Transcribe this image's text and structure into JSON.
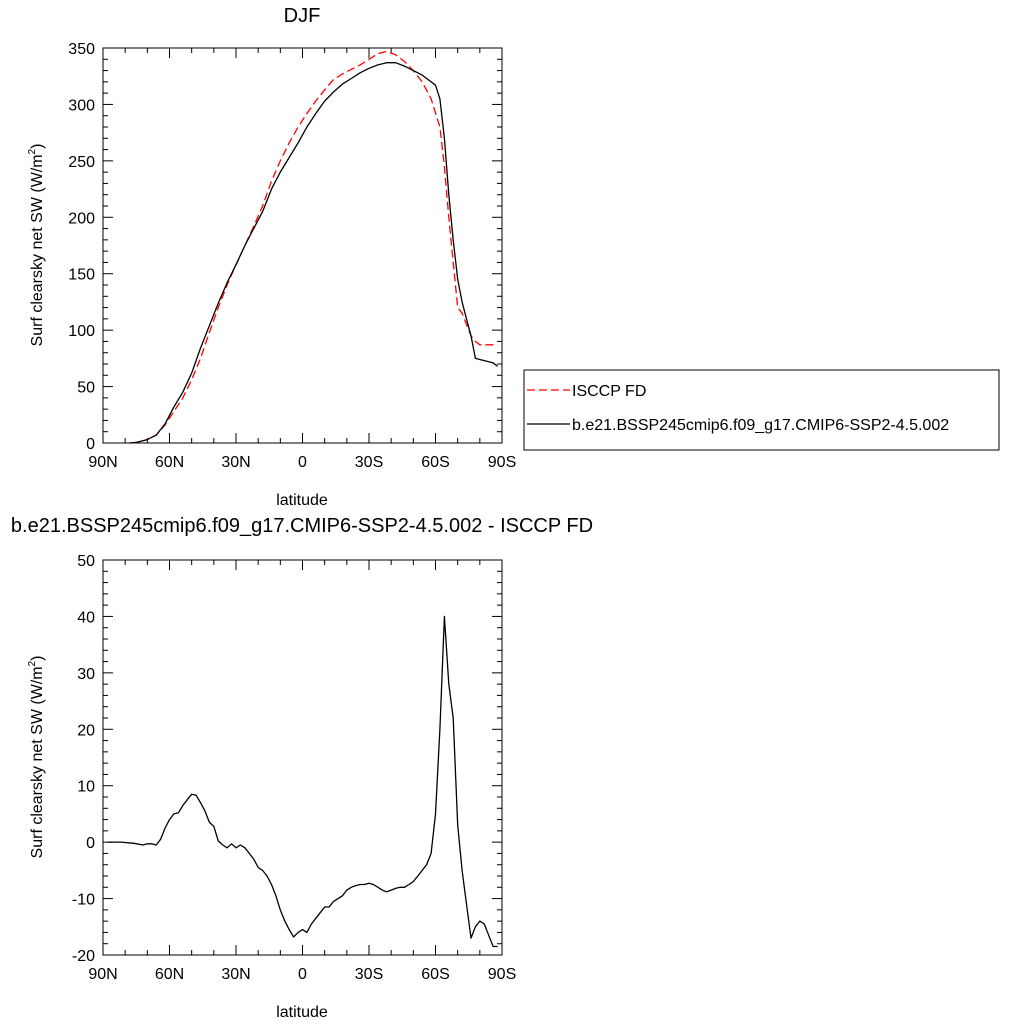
{
  "chart_data": [
    {
      "type": "line",
      "title": "DJF",
      "xlabel": "latitude",
      "ylabel": "Surf clearsky net SW (W/m",
      "ylabel_sup": "2",
      "ylabel_tail": ")",
      "xlim": [
        90,
        -90
      ],
      "ylim": [
        0,
        350
      ],
      "xticks": [
        90,
        60,
        30,
        0,
        -30,
        -60,
        -90
      ],
      "xtick_labels": [
        "90N",
        "60N",
        "30N",
        "0",
        "30S",
        "60S",
        "90S"
      ],
      "yticks": [
        0,
        50,
        100,
        150,
        200,
        250,
        300,
        350
      ],
      "ytick_labels": [
        "0",
        "50",
        "100",
        "150",
        "200",
        "250",
        "300",
        "350"
      ],
      "grid": false,
      "legend": "right",
      "series": [
        {
          "name": "ISCCP FD",
          "color": "#ff0000",
          "dash": true,
          "x": [
            78,
            75,
            70,
            66,
            62,
            58,
            54,
            50,
            46,
            42,
            38,
            34,
            30,
            26,
            22,
            18,
            14,
            10,
            6,
            2,
            -2,
            -6,
            -10,
            -14,
            -18,
            -22,
            -26,
            -30,
            -34,
            -38,
            -42,
            -46,
            -50,
            -54,
            -58,
            -62,
            -64,
            -66,
            -68,
            -70,
            -72,
            -74,
            -76,
            -78,
            -80,
            -82,
            -84,
            -86,
            -88
          ],
          "y": [
            0,
            0.5,
            3,
            7,
            16,
            28,
            40,
            56,
            75,
            98,
            120,
            140,
            158,
            175,
            192,
            210,
            232,
            250,
            266,
            280,
            292,
            303,
            313,
            322,
            327,
            331,
            335,
            340,
            345,
            347,
            344,
            338,
            330,
            320,
            305,
            280,
            245,
            200,
            160,
            120,
            115,
            105,
            95,
            90,
            87,
            87,
            87,
            87,
            87
          ]
        },
        {
          "name": "b.e21.BSSP245cmip6.f09_g17.CMIP6-SSP2-4.5.002",
          "color": "#000000",
          "dash": false,
          "x": [
            78,
            75,
            70,
            66,
            62,
            58,
            54,
            50,
            46,
            42,
            38,
            34,
            30,
            26,
            22,
            18,
            14,
            10,
            6,
            2,
            -2,
            -6,
            -10,
            -14,
            -18,
            -22,
            -26,
            -30,
            -34,
            -38,
            -42,
            -46,
            -50,
            -54,
            -58,
            -60,
            -62,
            -64,
            -66,
            -68,
            -70,
            -72,
            -74,
            -76,
            -78,
            -80,
            -82,
            -84,
            -86,
            -88
          ],
          "y": [
            0,
            0.5,
            3,
            7,
            17,
            32,
            45,
            62,
            84,
            104,
            124,
            142,
            158,
            175,
            190,
            205,
            225,
            240,
            253,
            266,
            280,
            292,
            303,
            311,
            318,
            323,
            328,
            332,
            335,
            337,
            337,
            334,
            330,
            326,
            320,
            317,
            305,
            270,
            220,
            180,
            145,
            125,
            110,
            95,
            75,
            74,
            73,
            72,
            71,
            68
          ]
        }
      ]
    },
    {
      "type": "line",
      "title": "b.e21.BSSP245cmip6.f09_g17.CMIP6-SSP2-4.5.002 - ISCCP FD",
      "xlabel": "latitude",
      "ylabel": "Surf clearsky net SW (W/m",
      "ylabel_sup": "2",
      "ylabel_tail": ")",
      "xlim": [
        90,
        -90
      ],
      "ylim": [
        -20,
        50
      ],
      "xticks": [
        90,
        60,
        30,
        0,
        -30,
        -60,
        -90
      ],
      "xtick_labels": [
        "90N",
        "60N",
        "30N",
        "0",
        "30S",
        "60S",
        "90S"
      ],
      "yticks": [
        -20,
        -10,
        0,
        10,
        20,
        30,
        40,
        50
      ],
      "ytick_labels": [
        "-20",
        "-10",
        "0",
        "10",
        "20",
        "30",
        "40",
        "50"
      ],
      "grid": false,
      "series": [
        {
          "color": "#000000",
          "dash": false,
          "x": [
            88,
            82,
            76,
            72,
            70,
            68,
            66,
            64,
            62,
            60,
            58,
            56,
            54,
            52,
            50,
            48,
            46,
            44,
            42,
            40,
            38,
            36,
            34,
            32,
            30,
            28,
            26,
            24,
            22,
            20,
            18,
            16,
            14,
            12,
            10,
            8,
            6,
            4,
            2,
            0,
            -2,
            -4,
            -6,
            -8,
            -10,
            -12,
            -14,
            -16,
            -18,
            -20,
            -22,
            -24,
            -26,
            -28,
            -30,
            -32,
            -34,
            -36,
            -38,
            -40,
            -42,
            -44,
            -46,
            -48,
            -50,
            -52,
            -54,
            -56,
            -58,
            -60,
            -62,
            -64,
            -66,
            -68,
            -70,
            -72,
            -74,
            -76,
            -78,
            -80,
            -82,
            -84,
            -86,
            -88
          ],
          "y": [
            0,
            0,
            -0.2,
            -0.5,
            -0.3,
            -0.3,
            -0.5,
            0.5,
            2.5,
            4,
            5,
            5.2,
            6.5,
            7.5,
            8.5,
            8.3,
            7,
            5.5,
            3.5,
            2.8,
            0.2,
            -0.5,
            -1,
            -0.3,
            -1,
            -0.5,
            -1,
            -2,
            -3,
            -4.5,
            -5,
            -6,
            -7.5,
            -9.5,
            -12,
            -14,
            -15.5,
            -16.8,
            -16,
            -15.5,
            -16,
            -14.5,
            -13.5,
            -12.5,
            -11.5,
            -11.5,
            -10.5,
            -10,
            -9.5,
            -8.5,
            -8,
            -7.7,
            -7.5,
            -7.5,
            -7.3,
            -7.5,
            -8,
            -8.5,
            -8.8,
            -8.5,
            -8.2,
            -8,
            -8,
            -7.5,
            -7,
            -6,
            -5,
            -4,
            -2,
            5,
            20,
            40,
            28,
            22,
            3,
            -5,
            -11,
            -17,
            -15,
            -14,
            -14.5,
            -16.5,
            -18.5,
            -18.5
          ]
        }
      ]
    }
  ]
}
